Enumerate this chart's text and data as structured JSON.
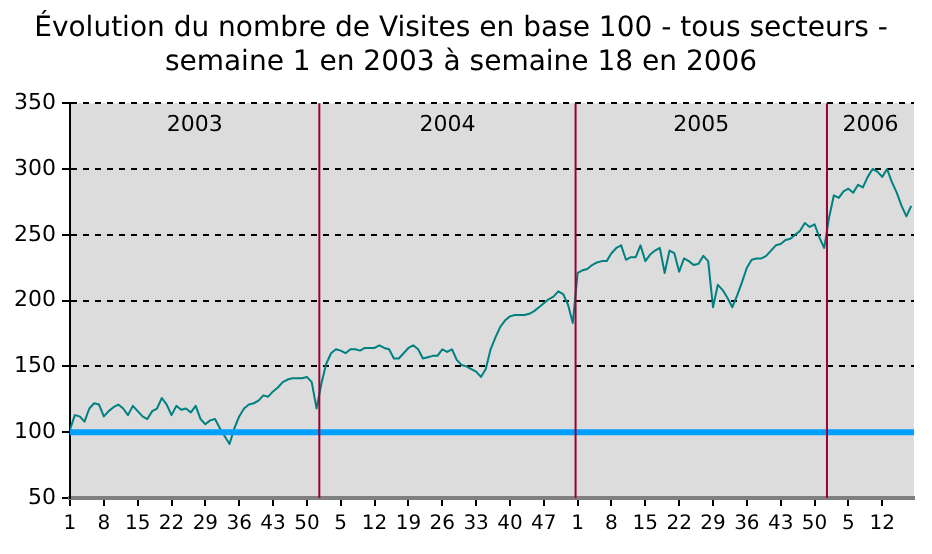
{
  "chart_data": {
    "type": "line",
    "title": "Évolution du nombre de Visites en base 100 - tous secteurs -\nsemaine 1 en 2003 à semaine 18 en 2006",
    "x": [
      "2003-01-02",
      "2003-01-09",
      "2003-01-16",
      "2003-01-23",
      "2003-01-30",
      "2003-02-06",
      "2003-02-13",
      "2003-02-20",
      "2003-02-27",
      "2003-03-06",
      "2003-03-13",
      "2003-03-20",
      "2003-03-27",
      "2003-04-03",
      "2003-04-10",
      "2003-04-17",
      "2003-04-24",
      "2003-05-01",
      "2003-05-08",
      "2003-05-15",
      "2003-05-22",
      "2003-05-29",
      "2003-06-05",
      "2003-06-12",
      "2003-06-19",
      "2003-06-26",
      "2003-07-03",
      "2003-07-10",
      "2003-07-17",
      "2003-07-24",
      "2003-07-31",
      "2003-08-07",
      "2003-08-14",
      "2003-08-21",
      "2003-08-28",
      "2003-09-04",
      "2003-09-11",
      "2003-09-18",
      "2003-09-25",
      "2003-10-02",
      "2003-10-09",
      "2003-10-16",
      "2003-10-23",
      "2003-10-30",
      "2003-11-06",
      "2003-11-13",
      "2003-11-20",
      "2003-11-27",
      "2003-12-04",
      "2003-12-11",
      "2003-12-18",
      "2003-12-25",
      "2004-01-01",
      "2004-01-08",
      "2004-01-15",
      "2004-01-22",
      "2004-01-29",
      "2004-02-05",
      "2004-02-12",
      "2004-02-19",
      "2004-02-26",
      "2004-03-04",
      "2004-03-11",
      "2004-03-18",
      "2004-03-25",
      "2004-04-01",
      "2004-04-08",
      "2004-04-15",
      "2004-04-22",
      "2004-04-29",
      "2004-05-06",
      "2004-05-13",
      "2004-05-20",
      "2004-05-27",
      "2004-06-03",
      "2004-06-10",
      "2004-06-17",
      "2004-06-24",
      "2004-07-01",
      "2004-07-08",
      "2004-07-15",
      "2004-07-22",
      "2004-07-29",
      "2004-08-05",
      "2004-08-12",
      "2004-08-19",
      "2004-08-26",
      "2004-09-02",
      "2004-09-09",
      "2004-09-16",
      "2004-09-23",
      "2004-09-30",
      "2004-10-07",
      "2004-10-14",
      "2004-10-21",
      "2004-10-28",
      "2004-11-04",
      "2004-11-11",
      "2004-11-18",
      "2004-11-25",
      "2004-12-02",
      "2004-12-09",
      "2004-12-16",
      "2004-12-23",
      "2004-12-30",
      "2005-01-06",
      "2005-01-13",
      "2005-01-20",
      "2005-01-27",
      "2005-02-03",
      "2005-02-10",
      "2005-02-17",
      "2005-02-24",
      "2005-03-03",
      "2005-03-10",
      "2005-03-17",
      "2005-03-24",
      "2005-03-31",
      "2005-04-07",
      "2005-04-14",
      "2005-04-21",
      "2005-04-28",
      "2005-05-05",
      "2005-05-12",
      "2005-05-19",
      "2005-05-26",
      "2005-06-02",
      "2005-06-09",
      "2005-06-16",
      "2005-06-23",
      "2005-06-30",
      "2005-07-07",
      "2005-07-14",
      "2005-07-21",
      "2005-07-28",
      "2005-08-04",
      "2005-08-11",
      "2005-08-18",
      "2005-08-25",
      "2005-09-01",
      "2005-09-08",
      "2005-09-15",
      "2005-09-22",
      "2005-09-29",
      "2005-10-06",
      "2005-10-13",
      "2005-10-20",
      "2005-10-27",
      "2005-11-03",
      "2005-11-10",
      "2005-11-17",
      "2005-11-24",
      "2005-12-01",
      "2005-12-08",
      "2005-12-15",
      "2005-12-22",
      "2005-12-29",
      "2006-01-05",
      "2006-01-12",
      "2006-01-19",
      "2006-01-26",
      "2006-02-02",
      "2006-02-09",
      "2006-02-16",
      "2006-02-23",
      "2006-03-02",
      "2006-03-09",
      "2006-03-16",
      "2006-03-23",
      "2006-03-30",
      "2006-04-06",
      "2006-04-13",
      "2006-04-20",
      "2006-04-27",
      "2006-05-04"
    ],
    "series": [
      {
        "color": "#008080",
        "values": [
          102,
          113,
          112,
          108,
          118,
          122,
          121,
          112,
          116,
          119,
          121,
          118,
          113,
          120,
          116,
          112,
          110,
          116,
          118,
          126,
          121,
          113,
          120,
          117,
          118,
          115,
          120,
          110,
          106,
          109,
          110,
          103,
          97,
          91,
          103,
          112,
          118,
          121,
          122,
          124,
          128,
          127,
          131,
          134,
          138,
          140,
          141,
          141,
          141,
          142,
          138,
          118,
          137,
          152,
          160,
          163,
          162,
          160,
          163,
          163,
          162,
          164,
          164,
          164,
          166,
          164,
          163,
          156,
          156,
          160,
          164,
          166,
          163,
          156,
          157,
          158,
          158,
          163,
          161,
          163,
          155,
          151,
          150,
          148,
          146,
          142,
          148,
          163,
          172,
          180,
          185,
          188,
          189,
          189,
          189,
          190,
          192,
          195,
          198,
          201,
          203,
          207,
          205,
          197,
          183,
          221,
          223,
          224,
          227,
          229,
          230,
          230,
          236,
          240,
          242,
          231,
          233,
          233,
          242,
          230,
          235,
          238,
          240,
          221,
          238,
          236,
          222,
          232,
          230,
          227,
          228,
          234,
          230,
          195,
          212,
          208,
          202,
          195,
          204,
          214,
          225,
          231,
          232,
          232,
          234,
          238,
          242,
          243,
          246,
          247,
          250,
          253,
          259,
          256,
          258,
          248,
          240,
          263,
          280,
          278,
          283,
          285,
          282,
          288,
          286,
          294,
          300,
          298,
          294,
          300,
          290,
          282,
          272,
          264,
          272
        ]
      }
    ],
    "xlim": [
      "2003-01-02",
      "2006-05-08"
    ],
    "xticks": [
      {
        "value": "2003-01-02",
        "label": "1"
      },
      {
        "value": "2003-02-20",
        "label": "8"
      },
      {
        "value": "2003-04-10",
        "label": "15"
      },
      {
        "value": "2003-05-29",
        "label": "22"
      },
      {
        "value": "2003-07-17",
        "label": "29"
      },
      {
        "value": "2003-09-04",
        "label": "36"
      },
      {
        "value": "2003-10-23",
        "label": "43"
      },
      {
        "value": "2003-12-11",
        "label": "50"
      },
      {
        "value": "2004-01-29",
        "label": "5"
      },
      {
        "value": "2004-03-18",
        "label": "12"
      },
      {
        "value": "2004-05-06",
        "label": "19"
      },
      {
        "value": "2004-06-24",
        "label": "26"
      },
      {
        "value": "2004-08-12",
        "label": "33"
      },
      {
        "value": "2004-09-30",
        "label": "40"
      },
      {
        "value": "2004-11-18",
        "label": "47"
      },
      {
        "value": "2005-01-06",
        "label": "1"
      },
      {
        "value": "2005-02-24",
        "label": "8"
      },
      {
        "value": "2005-04-14",
        "label": "15"
      },
      {
        "value": "2005-06-02",
        "label": "22"
      },
      {
        "value": "2005-07-21",
        "label": "29"
      },
      {
        "value": "2005-09-08",
        "label": "36"
      },
      {
        "value": "2005-10-27",
        "label": "43"
      },
      {
        "value": "2005-12-15",
        "label": "50"
      },
      {
        "value": "2006-02-02",
        "label": "5"
      },
      {
        "value": "2006-03-23",
        "label": "12"
      }
    ],
    "ylim": [
      50,
      350
    ],
    "yticks": [
      50,
      100,
      150,
      200,
      250,
      300,
      350
    ],
    "grid": "y",
    "legend": false,
    "marker": "none",
    "line_style": "solid",
    "ref_lines": [
      {
        "axis": "y",
        "value": 100,
        "color": "#00a0ff"
      },
      {
        "axis": "x",
        "value": "2003-12-29",
        "color": "#990033"
      },
      {
        "axis": "x",
        "value": "2005-01-03",
        "color": "#990033"
      },
      {
        "axis": "x",
        "value": "2006-01-02",
        "color": "#990033"
      }
    ],
    "bands": [
      {
        "axis": "x",
        "from": "2003-01-02",
        "to": "2003-12-29",
        "label": "2003",
        "color": "#dcdcdc"
      },
      {
        "axis": "x",
        "from": "2003-12-29",
        "to": "2005-01-03",
        "label": "2004",
        "color": "#dcdcdc"
      },
      {
        "axis": "x",
        "from": "2005-01-03",
        "to": "2006-01-02",
        "label": "2005",
        "color": "#dcdcdc"
      },
      {
        "axis": "x",
        "from": "2006-01-02",
        "to": "2006-05-08",
        "label": "2006",
        "color": "#dcdcdc"
      }
    ]
  }
}
